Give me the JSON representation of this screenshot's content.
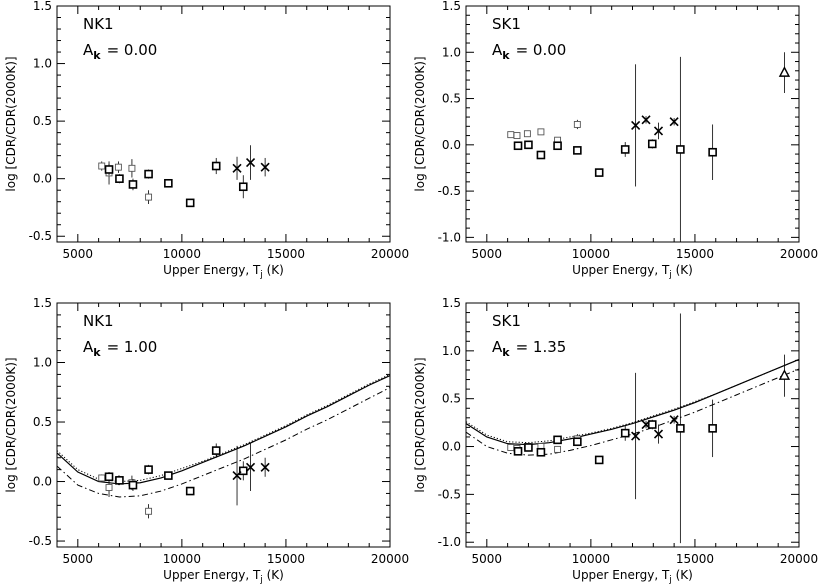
{
  "chart_data": [
    {
      "type": "scatter",
      "panel_label": "NK1",
      "param_symbol": "A",
      "param_subscript": "k",
      "param_value": "= 0.00",
      "xlabel_main": "Upper Energy, T",
      "xlabel_sub": "j",
      "xlabel_unit": " (K)",
      "ylabel": "log [CDR/CDR(2000K)]",
      "xlim": [
        4000,
        20000
      ],
      "ylim": [
        -0.55,
        1.5
      ],
      "xticks": [
        5000,
        10000,
        15000,
        20000
      ],
      "yticks": [
        -0.5,
        0.0,
        0.5,
        1.0,
        1.5
      ],
      "series": [
        {
          "marker": "square-small",
          "points": [
            {
              "x": 6150,
              "y": 0.11,
              "err": 0.04
            },
            {
              "x": 6500,
              "y": 0.05,
              "err": 0.1
            },
            {
              "x": 6950,
              "y": 0.1,
              "err": 0.05
            },
            {
              "x": 7600,
              "y": 0.09,
              "err": 0.08
            },
            {
              "x": 8400,
              "y": -0.16,
              "err": 0.06
            }
          ]
        },
        {
          "marker": "square",
          "points": [
            {
              "x": 6500,
              "y": 0.08,
              "err": 0.05
            },
            {
              "x": 7000,
              "y": 0.0,
              "err": 0.04
            },
            {
              "x": 7650,
              "y": -0.05,
              "err": 0.05
            },
            {
              "x": 8400,
              "y": 0.04,
              "err": 0.04
            },
            {
              "x": 9350,
              "y": -0.04,
              "err": 0.03
            },
            {
              "x": 10400,
              "y": -0.21,
              "err": 0.03
            },
            {
              "x": 11650,
              "y": 0.11,
              "err": 0.07
            },
            {
              "x": 12950,
              "y": -0.07,
              "err": 0.1
            }
          ]
        },
        {
          "marker": "cross",
          "points": [
            {
              "x": 12650,
              "y": 0.09,
              "err": 0.1
            },
            {
              "x": 13300,
              "y": 0.14,
              "err": 0.15
            },
            {
              "x": 14000,
              "y": 0.1,
              "err": 0.08
            }
          ]
        }
      ],
      "curves": []
    },
    {
      "type": "scatter",
      "panel_label": "SK1",
      "param_symbol": "A",
      "param_subscript": "k",
      "param_value": "= 0.00",
      "xlabel_main": "Upper Energy, T",
      "xlabel_sub": "j",
      "xlabel_unit": " (K)",
      "ylabel": "log [CDR/CDR(2000K)]",
      "xlim": [
        4000,
        20000
      ],
      "ylim": [
        -1.05,
        1.5
      ],
      "xticks": [
        5000,
        10000,
        15000,
        20000
      ],
      "yticks": [
        -1.0,
        -0.5,
        0.0,
        0.5,
        1.0,
        1.5
      ],
      "series": [
        {
          "marker": "square-small",
          "points": [
            {
              "x": 6150,
              "y": 0.11,
              "err": 0.03
            },
            {
              "x": 6450,
              "y": 0.1,
              "err": 0.03
            },
            {
              "x": 6950,
              "y": 0.12,
              "err": 0.03
            },
            {
              "x": 7600,
              "y": 0.14,
              "err": 0.03
            },
            {
              "x": 8400,
              "y": 0.05,
              "err": 0.03
            },
            {
              "x": 9350,
              "y": 0.22,
              "err": 0.05
            }
          ]
        },
        {
          "marker": "square",
          "points": [
            {
              "x": 6500,
              "y": -0.01,
              "err": 0.03
            },
            {
              "x": 7000,
              "y": 0.0,
              "err": 0.03
            },
            {
              "x": 7600,
              "y": -0.11,
              "err": 0.03
            },
            {
              "x": 8400,
              "y": -0.01,
              "err": 0.03
            },
            {
              "x": 9350,
              "y": -0.06,
              "err": 0.03
            },
            {
              "x": 10400,
              "y": -0.3,
              "err": 0.03
            },
            {
              "x": 11650,
              "y": -0.05,
              "err": 0.08
            },
            {
              "x": 12950,
              "y": 0.01,
              "err": 0.05
            },
            {
              "x": 14300,
              "y": -0.05,
              "err": 1.0
            },
            {
              "x": 15850,
              "y": -0.08,
              "err": 0.3
            }
          ]
        },
        {
          "marker": "cross",
          "points": [
            {
              "x": 12150,
              "y": 0.21,
              "err": 0.66
            },
            {
              "x": 12650,
              "y": 0.27,
              "err": 0.04
            },
            {
              "x": 13250,
              "y": 0.15,
              "err": 0.09
            },
            {
              "x": 14000,
              "y": 0.25,
              "err": 0.04
            }
          ]
        },
        {
          "marker": "triangle",
          "points": [
            {
              "x": 19300,
              "y": 0.78,
              "err": 0.22
            }
          ]
        }
      ],
      "curves": []
    },
    {
      "type": "scatter",
      "panel_label": "NK1",
      "param_symbol": "A",
      "param_subscript": "k",
      "param_value": "= 1.00",
      "xlabel_main": "Upper Energy, T",
      "xlabel_sub": "j",
      "xlabel_unit": " (K)",
      "ylabel": "log [CDR/CDR(2000K)]",
      "xlim": [
        4000,
        20000
      ],
      "ylim": [
        -0.55,
        1.5
      ],
      "xticks": [
        5000,
        10000,
        15000,
        20000
      ],
      "yticks": [
        -0.5,
        0.0,
        0.5,
        1.0,
        1.5
      ],
      "series": [
        {
          "marker": "square-small",
          "points": [
            {
              "x": 6150,
              "y": 0.03,
              "err": 0.03
            },
            {
              "x": 6500,
              "y": -0.05,
              "err": 0.08
            },
            {
              "x": 6950,
              "y": 0.01,
              "err": 0.04
            },
            {
              "x": 7600,
              "y": -0.01,
              "err": 0.06
            },
            {
              "x": 8400,
              "y": -0.25,
              "err": 0.06
            }
          ]
        },
        {
          "marker": "square",
          "points": [
            {
              "x": 6500,
              "y": 0.04,
              "err": 0.04
            },
            {
              "x": 7000,
              "y": 0.01,
              "err": 0.04
            },
            {
              "x": 7650,
              "y": -0.03,
              "err": 0.05
            },
            {
              "x": 8400,
              "y": 0.1,
              "err": 0.04
            },
            {
              "x": 9350,
              "y": 0.05,
              "err": 0.03
            },
            {
              "x": 10400,
              "y": -0.08,
              "err": 0.03
            },
            {
              "x": 11650,
              "y": 0.26,
              "err": 0.06
            },
            {
              "x": 12950,
              "y": 0.09,
              "err": 0.08
            }
          ]
        },
        {
          "marker": "cross",
          "points": [
            {
              "x": 12650,
              "y": 0.05,
              "err": 0.25
            },
            {
              "x": 13300,
              "y": 0.12,
              "err": 0.2
            },
            {
              "x": 14000,
              "y": 0.12,
              "err": 0.08
            }
          ]
        }
      ],
      "curves": [
        {
          "style": "solid",
          "points": [
            [
              4000,
              0.24
            ],
            [
              5000,
              0.08
            ],
            [
              6000,
              0.0
            ],
            [
              7000,
              -0.02
            ],
            [
              8000,
              -0.01
            ],
            [
              9000,
              0.03
            ],
            [
              10000,
              0.09
            ],
            [
              11000,
              0.16
            ],
            [
              12000,
              0.23
            ],
            [
              13000,
              0.3
            ],
            [
              14000,
              0.38
            ],
            [
              15000,
              0.46
            ],
            [
              16000,
              0.55
            ],
            [
              17000,
              0.63
            ],
            [
              18000,
              0.72
            ],
            [
              19000,
              0.81
            ],
            [
              20000,
              0.89
            ]
          ]
        },
        {
          "style": "dotted",
          "points": [
            [
              4000,
              0.26
            ],
            [
              5000,
              0.1
            ],
            [
              6000,
              0.02
            ],
            [
              7000,
              0.0
            ],
            [
              8000,
              0.01
            ],
            [
              9000,
              0.05
            ],
            [
              10000,
              0.11
            ],
            [
              11000,
              0.17
            ],
            [
              12000,
              0.24
            ],
            [
              13000,
              0.31
            ],
            [
              14000,
              0.39
            ],
            [
              15000,
              0.47
            ],
            [
              16000,
              0.56
            ],
            [
              17000,
              0.64
            ],
            [
              18000,
              0.73
            ],
            [
              19000,
              0.82
            ],
            [
              20000,
              0.9
            ]
          ]
        },
        {
          "style": "dashdot",
          "points": [
            [
              4000,
              0.13
            ],
            [
              5000,
              -0.03
            ],
            [
              6000,
              -0.1
            ],
            [
              7000,
              -0.13
            ],
            [
              8000,
              -0.12
            ],
            [
              9000,
              -0.08
            ],
            [
              10000,
              -0.02
            ],
            [
              11000,
              0.05
            ],
            [
              12000,
              0.12
            ],
            [
              13000,
              0.19
            ],
            [
              14000,
              0.27
            ],
            [
              15000,
              0.35
            ],
            [
              16000,
              0.44
            ],
            [
              17000,
              0.52
            ],
            [
              18000,
              0.61
            ],
            [
              19000,
              0.7
            ],
            [
              20000,
              0.79
            ]
          ]
        }
      ]
    },
    {
      "type": "scatter",
      "panel_label": "SK1",
      "param_symbol": "A",
      "param_subscript": "k",
      "param_value": "= 1.35",
      "xlabel_main": "Upper Energy, T",
      "xlabel_sub": "j",
      "xlabel_unit": " (K)",
      "ylabel": "log [CDR/CDR(2000K)]",
      "xlim": [
        4000,
        20000
      ],
      "ylim": [
        -1.05,
        1.5
      ],
      "xticks": [
        5000,
        10000,
        15000,
        20000
      ],
      "yticks": [
        -1.0,
        -0.5,
        0.0,
        0.5,
        1.0,
        1.5
      ],
      "series": [
        {
          "marker": "square-small",
          "points": [
            {
              "x": 6150,
              "y": -0.01,
              "err": 0.03
            },
            {
              "x": 6450,
              "y": -0.02,
              "err": 0.03
            },
            {
              "x": 6950,
              "y": 0.0,
              "err": 0.03
            },
            {
              "x": 7600,
              "y": 0.0,
              "err": 0.03
            },
            {
              "x": 8400,
              "y": -0.03,
              "err": 0.03
            },
            {
              "x": 9350,
              "y": 0.08,
              "err": 0.05
            }
          ]
        },
        {
          "marker": "square",
          "points": [
            {
              "x": 6500,
              "y": -0.05,
              "err": 0.03
            },
            {
              "x": 7000,
              "y": -0.01,
              "err": 0.03
            },
            {
              "x": 7600,
              "y": -0.06,
              "err": 0.03
            },
            {
              "x": 8400,
              "y": 0.07,
              "err": 0.03
            },
            {
              "x": 9350,
              "y": 0.05,
              "err": 0.03
            },
            {
              "x": 10400,
              "y": -0.14,
              "err": 0.03
            },
            {
              "x": 11650,
              "y": 0.14,
              "err": 0.08
            },
            {
              "x": 12950,
              "y": 0.23,
              "err": 0.05
            },
            {
              "x": 14300,
              "y": 0.19,
              "err": 1.2
            },
            {
              "x": 15850,
              "y": 0.19,
              "err": 0.3
            }
          ]
        },
        {
          "marker": "cross",
          "points": [
            {
              "x": 12150,
              "y": 0.11,
              "err": 0.66
            },
            {
              "x": 12650,
              "y": 0.23,
              "err": 0.04
            },
            {
              "x": 13250,
              "y": 0.13,
              "err": 0.1
            },
            {
              "x": 14000,
              "y": 0.28,
              "err": 0.04
            }
          ]
        },
        {
          "marker": "triangle",
          "points": [
            {
              "x": 19300,
              "y": 0.74,
              "err": 0.22
            }
          ]
        }
      ],
      "curves": [
        {
          "style": "solid",
          "points": [
            [
              4000,
              0.24
            ],
            [
              5000,
              0.1
            ],
            [
              6000,
              0.03
            ],
            [
              7000,
              0.02
            ],
            [
              8000,
              0.04
            ],
            [
              9000,
              0.08
            ],
            [
              10000,
              0.13
            ],
            [
              11000,
              0.18
            ],
            [
              12000,
              0.24
            ],
            [
              13000,
              0.31
            ],
            [
              14000,
              0.38
            ],
            [
              15000,
              0.46
            ],
            [
              16000,
              0.55
            ],
            [
              17000,
              0.64
            ],
            [
              18000,
              0.73
            ],
            [
              19000,
              0.82
            ],
            [
              20000,
              0.91
            ]
          ]
        },
        {
          "style": "dotted",
          "points": [
            [
              4000,
              0.26
            ],
            [
              5000,
              0.12
            ],
            [
              6000,
              0.05
            ],
            [
              7000,
              0.04
            ],
            [
              8000,
              0.06
            ],
            [
              9000,
              0.1
            ],
            [
              10000,
              0.14
            ],
            [
              11000,
              0.19
            ],
            [
              12000,
              0.25
            ],
            [
              13000,
              0.32
            ],
            [
              14000,
              0.39
            ],
            [
              15000,
              0.47
            ],
            [
              16000,
              0.55
            ],
            [
              17000,
              0.64
            ],
            [
              18000,
              0.73
            ],
            [
              19000,
              0.82
            ],
            [
              20000,
              0.91
            ]
          ]
        },
        {
          "style": "dashdot",
          "points": [
            [
              4000,
              0.15
            ],
            [
              5000,
              0.0
            ],
            [
              6000,
              -0.07
            ],
            [
              7000,
              -0.09
            ],
            [
              8000,
              -0.08
            ],
            [
              9000,
              -0.04
            ],
            [
              10000,
              0.01
            ],
            [
              11000,
              0.07
            ],
            [
              12000,
              0.13
            ],
            [
              13000,
              0.2
            ],
            [
              14000,
              0.28
            ],
            [
              15000,
              0.36
            ],
            [
              16000,
              0.45
            ],
            [
              17000,
              0.54
            ],
            [
              18000,
              0.63
            ],
            [
              19000,
              0.72
            ],
            [
              20000,
              0.81
            ]
          ]
        }
      ]
    }
  ]
}
